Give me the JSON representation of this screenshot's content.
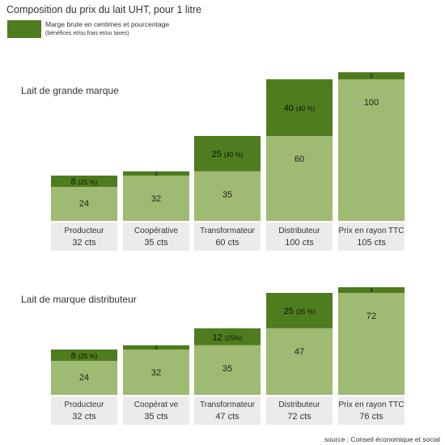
{
  "title": "Composition du prix du lait UHT, pour 1 litre",
  "legend": {
    "line1": "Marge brute en centimes et pourcentage",
    "line2": "(bénéfices et/ou frais et/ou taxes)"
  },
  "source": "source : Conseil économique et social",
  "colors": {
    "base": "#9fba72",
    "margin": "#4e7c1e",
    "label_bg": "#ebebeb"
  },
  "chart_data": [
    {
      "type": "bar",
      "title": "Lait de grande marque",
      "categories": [
        "Producteur",
        "Coopérative",
        "Transformateur",
        "Distributeur",
        "Prix en rayon TTC"
      ],
      "totals": [
        "32 cts",
        "35 cts",
        "60 cts",
        "100 cts",
        "105 cts"
      ],
      "series": [
        {
          "name": "base",
          "values": [
            24,
            32,
            35,
            60,
            100
          ]
        },
        {
          "name": "Marge brute en centimes et pourcentage",
          "values": [
            8,
            3,
            25,
            40,
            5
          ],
          "labels": [
            "8 (25 %)",
            "3",
            "25 (40 %)",
            "40 (40 %)",
            "5"
          ]
        }
      ]
    },
    {
      "type": "bar",
      "title": "Lait de marque distributeur",
      "categories": [
        "Producteur",
        "Coopérat ve",
        "Transformateur",
        "Distributeur",
        "Prix en rayon TTC"
      ],
      "totals": [
        "32 cts",
        "35 cts",
        "47 cts",
        "72 cts",
        "76 cts"
      ],
      "series": [
        {
          "name": "base",
          "values": [
            24,
            32,
            35,
            47,
            72
          ]
        },
        {
          "name": "Marge brute en centimes et pourcentage",
          "values": [
            8,
            3,
            12,
            25,
            4
          ],
          "labels": [
            "8 (25 %)",
            "3",
            "12 (25%)",
            "25 (35 %)",
            "4"
          ]
        }
      ]
    }
  ]
}
